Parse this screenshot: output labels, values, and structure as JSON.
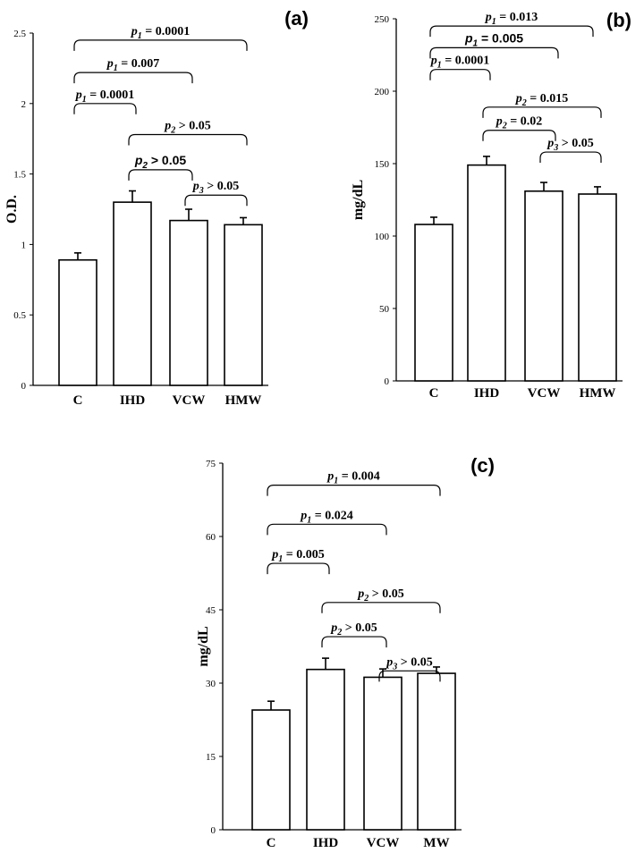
{
  "chart_data": [
    {
      "type": "bar",
      "panel_label": "(a)",
      "ylabel": "O.D.",
      "ylim": [
        0,
        2.5
      ],
      "yticks": [
        "0",
        "0.5",
        "1",
        "1.5",
        "2",
        "2.5"
      ],
      "categories": [
        "C",
        "IHD",
        "VCW",
        "HMW"
      ],
      "values": [
        0.89,
        1.3,
        1.17,
        1.14
      ],
      "errors": [
        0.05,
        0.08,
        0.08,
        0.05
      ],
      "annotations": [
        {
          "sym": "p",
          "sub": "1",
          "text": " = 0.0001",
          "from": 0,
          "to": 3,
          "y": 2.45,
          "style": "serif"
        },
        {
          "sym": "p",
          "sub": "1",
          "text": " = 0.007",
          "from": 0,
          "to": 2,
          "y": 2.22,
          "style": "serif"
        },
        {
          "sym": "p",
          "sub": "1",
          "text": " = 0.0001",
          "from": 0,
          "to": 1,
          "y": 2.0,
          "style": "serif"
        },
        {
          "sym": "p",
          "sub": "2",
          "text": " > 0.05",
          "from": 1,
          "to": 3,
          "y": 1.78,
          "style": "serif"
        },
        {
          "sym": "p",
          "sub": "2",
          "text": " > 0.05",
          "from": 1,
          "to": 2,
          "y": 1.53,
          "style": "sans"
        },
        {
          "sym": "p",
          "sub": "3",
          "text": " > 0.05",
          "from": 2,
          "to": 3,
          "y": 1.35,
          "style": "serif"
        }
      ]
    },
    {
      "type": "bar",
      "panel_label": "(b)",
      "ylabel": "mg/dL",
      "ylim": [
        0,
        250
      ],
      "yticks": [
        "0",
        "50",
        "100",
        "150",
        "200",
        "250"
      ],
      "categories": [
        "C",
        "IHD",
        "VCW",
        "HMW"
      ],
      "values": [
        108,
        149,
        131,
        129
      ],
      "errors": [
        5,
        6,
        6,
        5
      ],
      "annotations": [
        {
          "sym": "p",
          "sub": "1",
          "text": " = 0.013",
          "from": 0,
          "to": 2.85,
          "y": 245,
          "style": "serif"
        },
        {
          "sym": "p",
          "sub": "1",
          "text": " = 0.005",
          "from": 0,
          "to": 2.2,
          "y": 230,
          "style": "sans"
        },
        {
          "sym": "p",
          "sub": "1",
          "text": " = 0.0001",
          "from": 0,
          "to": 1,
          "y": 215,
          "style": "serif"
        },
        {
          "sym": "p",
          "sub": "2",
          "text": " = 0.015",
          "from": 1,
          "to": 3,
          "y": 189,
          "style": "serif"
        },
        {
          "sym": "p",
          "sub": "2",
          "text": " = 0.02",
          "from": 1,
          "to": 2.15,
          "y": 173,
          "style": "serif"
        },
        {
          "sym": "p",
          "sub": "3",
          "text": " > 0.05",
          "from": 2,
          "to": 3,
          "y": 158,
          "style": "serif"
        }
      ]
    },
    {
      "type": "bar",
      "panel_label": "(c)",
      "ylabel": "mg/dL",
      "ylim": [
        0,
        75
      ],
      "yticks": [
        "0",
        "15",
        "30",
        "45",
        "60",
        "75"
      ],
      "categories": [
        "C",
        "IHD",
        "VCW",
        "MW"
      ],
      "values": [
        24.5,
        32.8,
        31.2,
        32.0
      ],
      "errors": [
        1.8,
        2.3,
        1.7,
        1.3
      ],
      "annotations": [
        {
          "sym": "p",
          "sub": "1",
          "text": " = 0.004",
          "from": 0,
          "to": 3,
          "y": 70.5,
          "style": "serif"
        },
        {
          "sym": "p",
          "sub": "1",
          "text": " = 0.024",
          "from": 0,
          "to": 2,
          "y": 62.5,
          "style": "serif"
        },
        {
          "sym": "p",
          "sub": "1",
          "text": " = 0.005",
          "from": 0,
          "to": 1,
          "y": 54.5,
          "style": "serif"
        },
        {
          "sym": "p",
          "sub": "2",
          "text": " > 0.05",
          "from": 1,
          "to": 3,
          "y": 46.5,
          "style": "serif"
        },
        {
          "sym": "p",
          "sub": "2",
          "text": " > 0.05",
          "from": 1,
          "to": 2,
          "y": 39.5,
          "style": "serif"
        },
        {
          "sym": "p",
          "sub": "3",
          "text": " > 0.05",
          "from": 2,
          "to": 3,
          "y": 32.5,
          "style": "serif"
        }
      ]
    }
  ]
}
